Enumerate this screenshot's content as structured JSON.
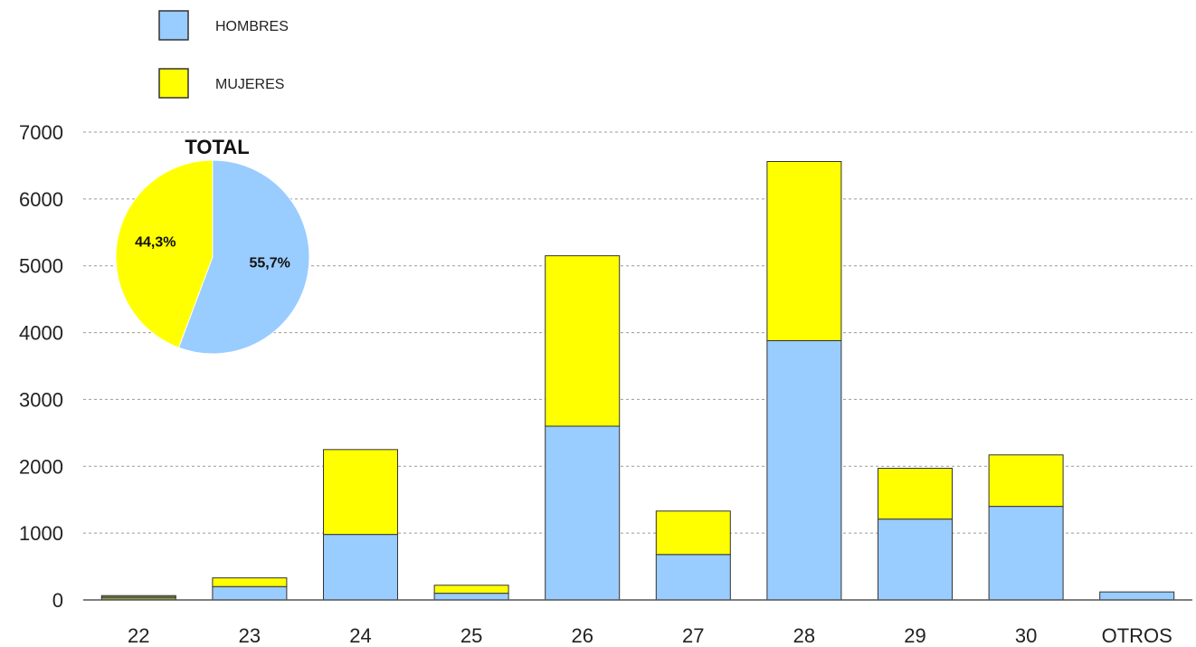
{
  "chart_data": [
    {
      "type": "bar",
      "stacked": true,
      "categories": [
        "22",
        "23",
        "24",
        "25",
        "26",
        "27",
        "28",
        "29",
        "30",
        "OTROS"
      ],
      "series": [
        {
          "name": "HOMBRES",
          "color": "#99ccff",
          "values": [
            40,
            200,
            980,
            100,
            2600,
            680,
            3880,
            1210,
            1400,
            120
          ]
        },
        {
          "name": "MUJERES",
          "color": "#ffff00",
          "values": [
            25,
            130,
            1270,
            120,
            2550,
            650,
            2680,
            760,
            770,
            0
          ]
        }
      ],
      "ylim": [
        0,
        7000
      ],
      "yticks": [
        0,
        1000,
        2000,
        3000,
        4000,
        5000,
        6000,
        7000
      ],
      "grid": true,
      "legend": "top-left"
    },
    {
      "type": "pie",
      "title": "TOTAL",
      "slices": [
        {
          "name": "HOMBRES",
          "value": 55.7,
          "label": "55,7%",
          "color": "#99ccff"
        },
        {
          "name": "MUJERES",
          "value": 44.3,
          "label": "44,3%",
          "color": "#ffff00"
        }
      ]
    }
  ]
}
